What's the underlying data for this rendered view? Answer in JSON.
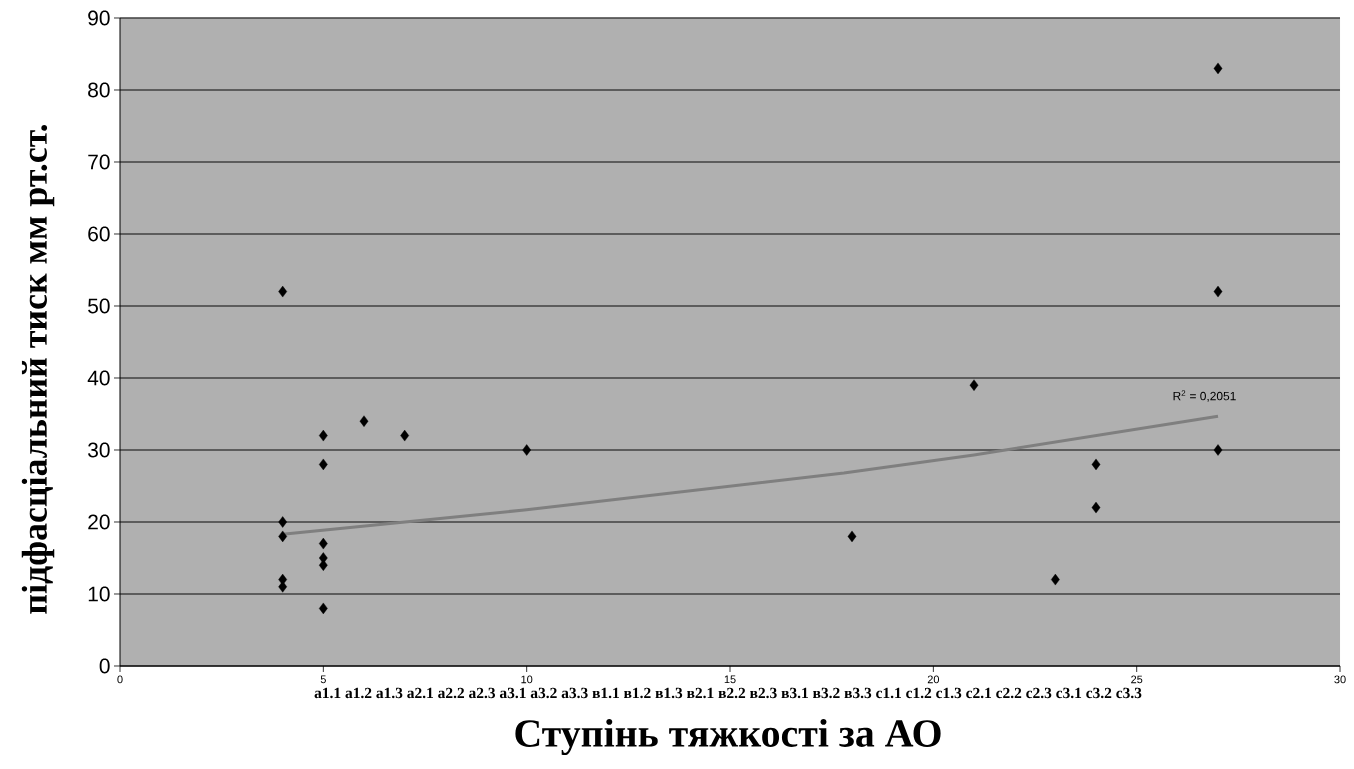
{
  "chart_data": {
    "type": "scatter",
    "xlabel": "Ступінь тяжкості за АО",
    "ylabel": "підфасціальний тиск мм рт.ст.",
    "xlim": [
      0,
      30
    ],
    "xticks": [
      0,
      5,
      10,
      15,
      20,
      25,
      30
    ],
    "ylim": [
      0,
      90
    ],
    "yticks": [
      0,
      10,
      20,
      30,
      40,
      50,
      60,
      70,
      80,
      90
    ],
    "grid": "y",
    "marker": "diamond",
    "series": [
      {
        "color": "#000000",
        "x": [
          4,
          4,
          4,
          4,
          4,
          5,
          5,
          5,
          5,
          5,
          5,
          6,
          7,
          10,
          18,
          21,
          23,
          24,
          24,
          27,
          27,
          27
        ],
        "values": [
          52,
          20,
          18,
          12,
          11,
          32,
          28,
          17,
          15,
          14,
          8,
          34,
          32,
          30,
          18,
          39,
          12,
          28,
          22,
          83,
          52,
          30
        ]
      },
      {
        "type": "line",
        "marker": "none",
        "color": "#7f7f7f",
        "x": [
          4,
          10,
          17.8,
          21,
          27
        ],
        "values": [
          18.3,
          21.7,
          26.8,
          29.3,
          34.7
        ]
      }
    ],
    "annotations": [
      "R$^{2}$ = 0,2051",
      "a1.1 a1.2 a1.3 a2.1 a2.2 a2.3 a3.1 a3.2 a3.3 в1.1 в1.2 в1.3 в2.1 в2.2 в2.3 в3.1 в3.2 в3.3 c1.1 c1.2 c1.3 c2.1 c2.2 c2.3 c3.1 c3.2 c3.3"
    ]
  }
}
